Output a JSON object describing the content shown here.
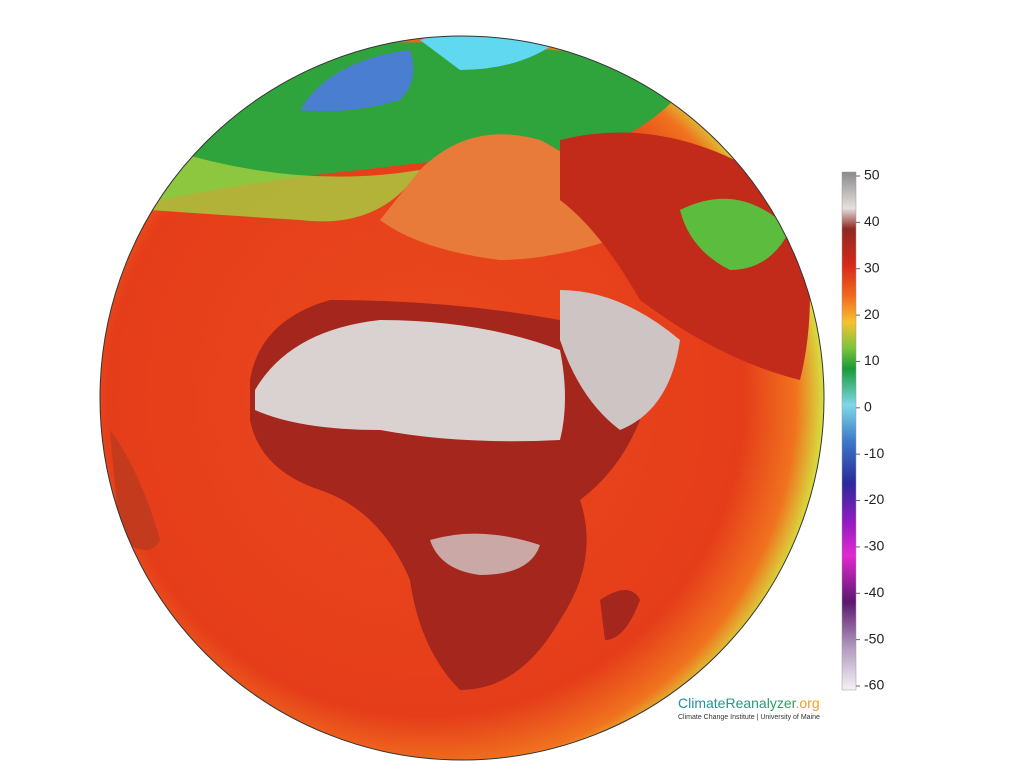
{
  "colorbar": {
    "ticks": [
      50,
      40,
      30,
      20,
      10,
      0,
      -10,
      -20,
      -30,
      -40,
      -50,
      -60
    ]
  },
  "branding": {
    "name": "ClimateReanalyzer",
    "domain": ".org",
    "subtitle": "Climate Change Institute | University of Maine"
  }
}
